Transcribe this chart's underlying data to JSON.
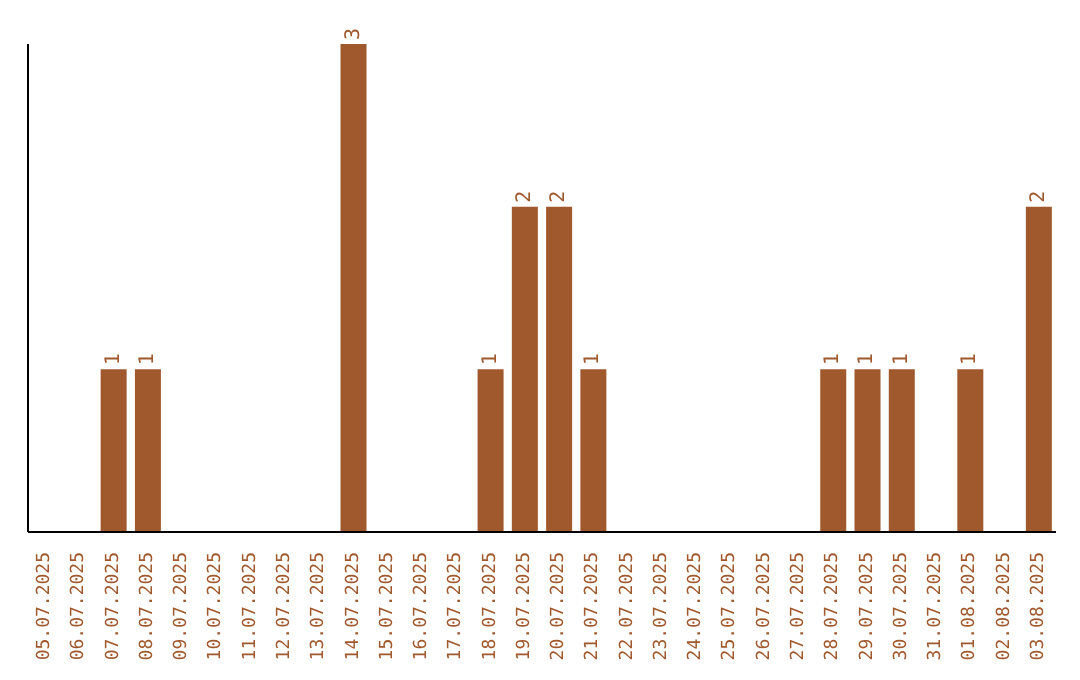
{
  "chart_data": {
    "type": "bar",
    "categories": [
      "05.07.2025",
      "06.07.2025",
      "07.07.2025",
      "08.07.2025",
      "09.07.2025",
      "10.07.2025",
      "11.07.2025",
      "12.07.2025",
      "13.07.2025",
      "14.07.2025",
      "15.07.2025",
      "16.07.2025",
      "17.07.2025",
      "18.07.2025",
      "19.07.2025",
      "20.07.2025",
      "21.07.2025",
      "22.07.2025",
      "23.07.2025",
      "24.07.2025",
      "25.07.2025",
      "26.07.2025",
      "27.07.2025",
      "28.07.2025",
      "29.07.2025",
      "30.07.2025",
      "31.07.2025",
      "01.08.2025",
      "02.08.2025",
      "03.08.2025"
    ],
    "values": [
      0,
      0,
      1,
      1,
      0,
      0,
      0,
      0,
      0,
      3,
      0,
      0,
      0,
      1,
      2,
      2,
      1,
      0,
      0,
      0,
      0,
      0,
      0,
      1,
      1,
      1,
      0,
      1,
      0,
      2
    ],
    "value_labels": [
      null,
      null,
      "1",
      "1",
      null,
      null,
      null,
      null,
      null,
      "3",
      null,
      null,
      null,
      "1",
      "2",
      "2",
      "1",
      null,
      null,
      null,
      null,
      null,
      null,
      "1",
      "1",
      "1",
      null,
      "1",
      null,
      "2"
    ],
    "color": "#a0592d",
    "tick_labels": "x",
    "grid": false,
    "legend": false
  }
}
